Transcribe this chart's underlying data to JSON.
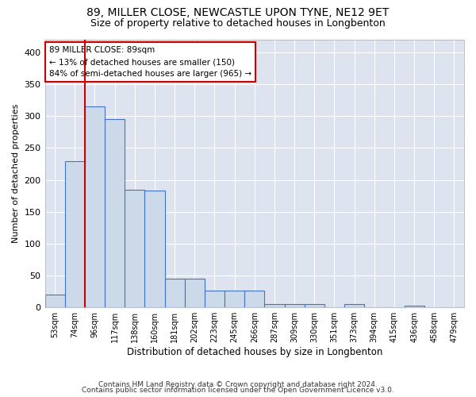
{
  "title1": "89, MILLER CLOSE, NEWCASTLE UPON TYNE, NE12 9ET",
  "title2": "Size of property relative to detached houses in Longbenton",
  "xlabel": "Distribution of detached houses by size in Longbenton",
  "ylabel": "Number of detached properties",
  "footnote1": "Contains HM Land Registry data © Crown copyright and database right 2024.",
  "footnote2": "Contains public sector information licensed under the Open Government Licence v3.0.",
  "categories": [
    "53sqm",
    "74sqm",
    "96sqm",
    "117sqm",
    "138sqm",
    "160sqm",
    "181sqm",
    "202sqm",
    "223sqm",
    "245sqm",
    "266sqm",
    "287sqm",
    "309sqm",
    "330sqm",
    "351sqm",
    "373sqm",
    "394sqm",
    "415sqm",
    "436sqm",
    "458sqm",
    "479sqm"
  ],
  "values": [
    20,
    230,
    315,
    295,
    185,
    183,
    45,
    45,
    27,
    27,
    27,
    5,
    5,
    5,
    0,
    5,
    0,
    0,
    3,
    0,
    0
  ],
  "bar_color": "#ccd9e8",
  "bar_edge_color": "#4472c4",
  "highlight_bar_index": 2,
  "highlight_color": "#cc0000",
  "annotation_line1": "89 MILLER CLOSE: 89sqm",
  "annotation_line2": "← 13% of detached houses are smaller (150)",
  "annotation_line3": "84% of semi-detached houses are larger (965) →",
  "annotation_box_color": "#cc0000",
  "ylim": [
    0,
    420
  ],
  "yticks": [
    0,
    50,
    100,
    150,
    200,
    250,
    300,
    350,
    400
  ],
  "background_color": "#dde4ef",
  "grid_color": "#ffffff",
  "title1_fontsize": 10,
  "title2_fontsize": 9
}
